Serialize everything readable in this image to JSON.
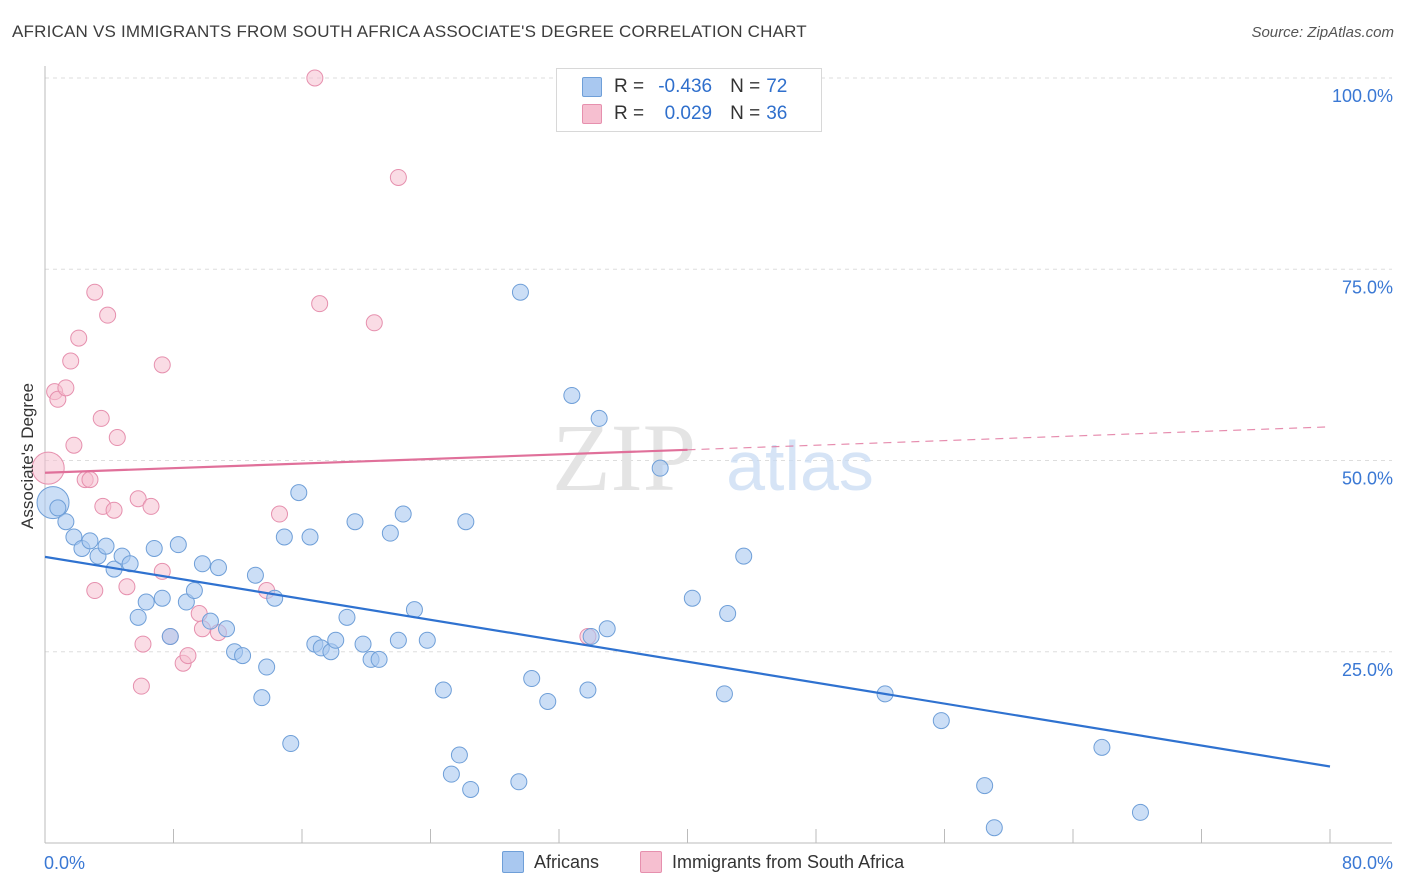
{
  "header": {
    "title": "AFRICAN VS IMMIGRANTS FROM SOUTH AFRICA ASSOCIATE'S DEGREE CORRELATION CHART",
    "source": "Source: ZipAtlas.com"
  },
  "legend": {
    "rows": [
      {
        "r_label": "R =",
        "r_value": "-0.436",
        "n_label": "N =",
        "n_value": "72"
      },
      {
        "r_label": "R =",
        "r_value": "0.029",
        "n_label": "N =",
        "n_value": "36"
      }
    ]
  },
  "watermark": {
    "zip": "ZIP",
    "atlas": "atlas"
  },
  "colors": {
    "blue_fill": "#a9c8f0",
    "blue_stroke": "#6f9fd8",
    "blue_line": "#2f72d0",
    "pink_fill": "#f6bfd0",
    "pink_stroke": "#e690ae",
    "pink_line": "#e0709a",
    "tick_label": "#3a78d4",
    "grid": "#dddddd"
  },
  "chart_data": {
    "type": "scatter",
    "title": "AFRICAN VS IMMIGRANTS FROM SOUTH AFRICA ASSOCIATE'S DEGREE CORRELATION CHART",
    "xlabel": "",
    "ylabel": "Associate's Degree",
    "xlim": [
      0,
      80
    ],
    "ylim": [
      0,
      100
    ],
    "x_tick_labels": [
      "0.0%",
      "80.0%"
    ],
    "y_ticks": [
      25,
      50,
      75,
      100
    ],
    "y_tick_labels": [
      "25.0%",
      "50.0%",
      "75.0%",
      "100.0%"
    ],
    "grid": "horizontal dashed",
    "legend_position": "top-center",
    "series": [
      {
        "name": "Africans",
        "color": "#a9c8f0",
        "r": -0.436,
        "n": 72,
        "trend": {
          "x": [
            0,
            80
          ],
          "y": [
            37.4,
            10.0
          ],
          "style": "solid"
        },
        "points": [
          [
            0.5,
            44.5
          ],
          [
            0.8,
            43.8
          ],
          [
            1.3,
            42.0
          ],
          [
            1.8,
            40.0
          ],
          [
            2.3,
            38.5
          ],
          [
            2.8,
            39.5
          ],
          [
            3.3,
            37.5
          ],
          [
            3.8,
            38.8
          ],
          [
            4.3,
            35.8
          ],
          [
            4.8,
            37.5
          ],
          [
            5.3,
            36.5
          ],
          [
            5.8,
            29.5
          ],
          [
            6.3,
            31.5
          ],
          [
            6.8,
            38.5
          ],
          [
            7.3,
            32.0
          ],
          [
            7.8,
            27.0
          ],
          [
            8.3,
            39.0
          ],
          [
            8.8,
            31.5
          ],
          [
            9.3,
            33.0
          ],
          [
            9.8,
            36.5
          ],
          [
            10.3,
            29.0
          ],
          [
            10.8,
            36.0
          ],
          [
            11.3,
            28.0
          ],
          [
            11.8,
            25.0
          ],
          [
            12.3,
            24.5
          ],
          [
            13.1,
            35.0
          ],
          [
            13.5,
            19.0
          ],
          [
            13.8,
            23.0
          ],
          [
            14.3,
            32.0
          ],
          [
            14.9,
            40.0
          ],
          [
            15.3,
            13.0
          ],
          [
            15.8,
            45.8
          ],
          [
            16.5,
            40.0
          ],
          [
            16.8,
            26.0
          ],
          [
            17.2,
            25.5
          ],
          [
            17.8,
            25.0
          ],
          [
            18.1,
            26.5
          ],
          [
            18.8,
            29.5
          ],
          [
            19.3,
            42.0
          ],
          [
            19.8,
            26.0
          ],
          [
            20.3,
            24.0
          ],
          [
            20.8,
            24.0
          ],
          [
            21.5,
            40.5
          ],
          [
            22.0,
            26.5
          ],
          [
            22.3,
            43.0
          ],
          [
            23.0,
            30.5
          ],
          [
            23.8,
            26.5
          ],
          [
            24.8,
            20.0
          ],
          [
            25.3,
            9.0
          ],
          [
            25.8,
            11.5
          ],
          [
            26.2,
            42.0
          ],
          [
            26.5,
            7.0
          ],
          [
            29.5,
            8.0
          ],
          [
            29.6,
            72.0
          ],
          [
            30.3,
            21.5
          ],
          [
            31.3,
            18.5
          ],
          [
            32.8,
            58.5
          ],
          [
            33.8,
            20.0
          ],
          [
            34.5,
            55.5
          ],
          [
            35.0,
            28.0
          ],
          [
            38.3,
            49.0
          ],
          [
            40.3,
            32.0
          ],
          [
            42.3,
            19.5
          ],
          [
            42.5,
            30.0
          ],
          [
            43.5,
            37.5
          ],
          [
            52.3,
            19.5
          ],
          [
            55.8,
            16.0
          ],
          [
            58.5,
            7.5
          ],
          [
            59.1,
            2.0
          ],
          [
            65.8,
            12.5
          ],
          [
            68.2,
            4.0
          ],
          [
            34.0,
            27.0
          ]
        ]
      },
      {
        "name": "Immigrants from South Africa",
        "color": "#f6bfd0",
        "r": 0.029,
        "n": 36,
        "trend": {
          "x": [
            0,
            80
          ],
          "y": [
            48.4,
            54.4
          ],
          "solid_until_x": 40
        },
        "points": [
          [
            0.2,
            49.0
          ],
          [
            0.6,
            59.0
          ],
          [
            0.8,
            58.0
          ],
          [
            1.3,
            59.5
          ],
          [
            1.6,
            63.0
          ],
          [
            1.8,
            52.0
          ],
          [
            2.1,
            66.0
          ],
          [
            2.5,
            47.5
          ],
          [
            2.8,
            47.5
          ],
          [
            3.1,
            33.0
          ],
          [
            3.1,
            72.0
          ],
          [
            3.5,
            55.5
          ],
          [
            3.6,
            44.0
          ],
          [
            3.9,
            69.0
          ],
          [
            4.3,
            43.5
          ],
          [
            4.5,
            53.0
          ],
          [
            5.1,
            33.5
          ],
          [
            5.8,
            45.0
          ],
          [
            6.0,
            20.5
          ],
          [
            6.1,
            26.0
          ],
          [
            6.6,
            44.0
          ],
          [
            7.3,
            62.5
          ],
          [
            7.3,
            35.5
          ],
          [
            7.8,
            27.0
          ],
          [
            8.6,
            23.5
          ],
          [
            8.9,
            24.5
          ],
          [
            9.6,
            30.0
          ],
          [
            9.8,
            28.0
          ],
          [
            10.8,
            27.5
          ],
          [
            13.8,
            33.0
          ],
          [
            14.6,
            43.0
          ],
          [
            16.8,
            100.0
          ],
          [
            17.1,
            70.5
          ],
          [
            20.5,
            68.0
          ],
          [
            22.0,
            87.0
          ],
          [
            33.8,
            27.0
          ]
        ]
      }
    ]
  },
  "bottom_legend": {
    "items": [
      {
        "label": "Africans"
      },
      {
        "label": "Immigrants from South Africa"
      }
    ]
  }
}
